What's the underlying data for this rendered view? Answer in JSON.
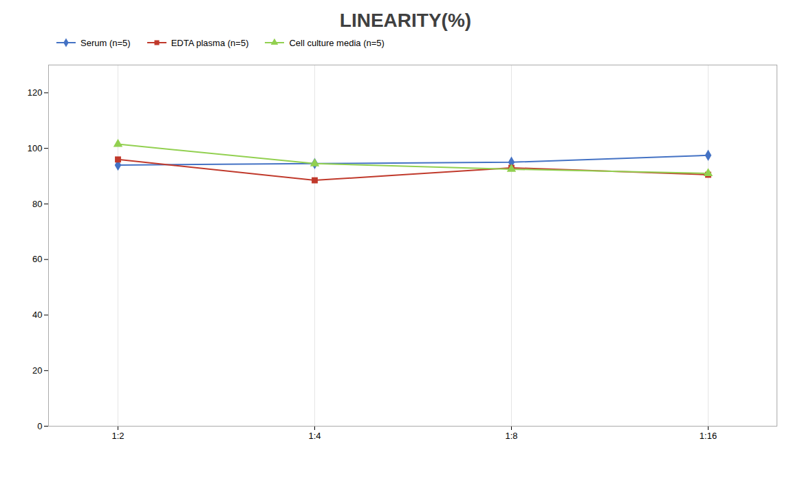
{
  "chart_data": {
    "type": "line",
    "title": "LINEARITY(%)",
    "categories": [
      "1:2",
      "1:4",
      "1:8",
      "1:16"
    ],
    "series": [
      {
        "name": "Serum (n=5)",
        "color": "#4472C4",
        "marker": "diamond",
        "values": [
          94.0,
          94.5,
          95.0,
          97.5
        ]
      },
      {
        "name": "EDTA plasma (n=5)",
        "color": "#C0392B",
        "marker": "square",
        "values": [
          96.0,
          88.5,
          93.0,
          90.5
        ]
      },
      {
        "name": "Cell culture media (n=5)",
        "color": "#92D050",
        "marker": "triangle",
        "values": [
          101.5,
          94.5,
          92.5,
          91.0
        ]
      }
    ],
    "ylim": [
      0,
      130
    ],
    "yticks": [
      0,
      20,
      40,
      60,
      80,
      100,
      120
    ],
    "grid": true,
    "legend": "top left"
  }
}
